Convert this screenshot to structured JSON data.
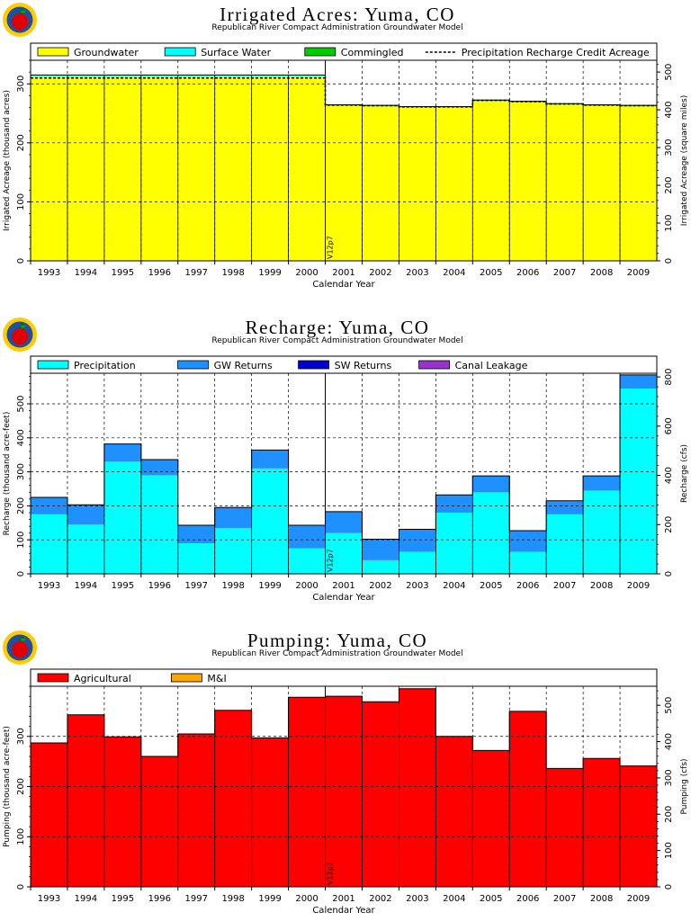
{
  "chart_data": [
    {
      "type": "area",
      "title": "Irrigated Acres: Yuma, CO",
      "subtitle": "Republican River Compact Administration Groundwater Model",
      "xlabel": "Calendar Year",
      "ylabel": "Irrigated Acreage (thousand acres)",
      "y2label": "Irrigated Acreage (square miles)",
      "marker_label": "V12p7",
      "marker_year": 2000.5,
      "categories": [
        "1993",
        "1994",
        "1995",
        "1996",
        "1997",
        "1998",
        "1999",
        "2000",
        "2001",
        "2002",
        "2003",
        "2004",
        "2005",
        "2006",
        "2007",
        "2008",
        "2009"
      ],
      "ylim": [
        0,
        340
      ],
      "yticks": [
        0,
        100,
        200,
        300
      ],
      "y2lim": [
        0,
        531.25
      ],
      "y2ticks": [
        0,
        100,
        200,
        300,
        400,
        500
      ],
      "legend": [
        "Groundwater",
        "Surface Water",
        "Commingled",
        "Precipitation Recharge Credit Acreage"
      ],
      "series": [
        {
          "name": "Groundwater",
          "color": "#ffff00",
          "values": [
            313,
            313,
            313,
            313,
            313,
            313,
            313,
            313,
            263,
            262,
            260,
            260,
            271,
            269,
            265,
            263,
            262
          ]
        },
        {
          "name": "Surface Water",
          "color": "#00ffff",
          "values": [
            2,
            2,
            2,
            2,
            2,
            2,
            2,
            2,
            1.5,
            1.5,
            1.5,
            1.5,
            1.5,
            1.5,
            1.5,
            1.5,
            1.5
          ]
        },
        {
          "name": "Commingled",
          "color": "#00cc00",
          "values": [
            0,
            0,
            0,
            0,
            0,
            0,
            0,
            0,
            0,
            0,
            0,
            0,
            0,
            0,
            0,
            0,
            0
          ]
        }
      ],
      "line": {
        "name": "Precipitation Recharge Credit Acreage",
        "values": [
          310,
          310,
          310,
          310,
          310,
          310,
          310,
          310,
          264,
          263,
          261,
          261,
          272,
          270,
          266,
          264,
          263
        ]
      }
    },
    {
      "type": "area",
      "title": "Recharge: Yuma, CO",
      "subtitle": "Republican River Compact Administration Groundwater Model",
      "xlabel": "Calendar Year",
      "ylabel": "Recharge (thousand acre-feet)",
      "y2label": "Recharge (cfs)",
      "marker_label": "V12p7",
      "marker_year": 2000.5,
      "categories": [
        "1993",
        "1994",
        "1995",
        "1996",
        "1997",
        "1998",
        "1999",
        "2000",
        "2001",
        "2002",
        "2003",
        "2004",
        "2005",
        "2006",
        "2007",
        "2008",
        "2009"
      ],
      "ylim": [
        0,
        590
      ],
      "yticks": [
        0,
        100,
        200,
        300,
        400,
        500
      ],
      "y2lim": [
        0,
        814.9
      ],
      "y2ticks": [
        0,
        200,
        400,
        600,
        800
      ],
      "legend": [
        "Precipitation",
        "GW Returns",
        "SW Returns",
        "Canal Leakage"
      ],
      "series": [
        {
          "name": "Precipitation",
          "color": "#00ffff",
          "values": [
            175,
            145,
            330,
            290,
            90,
            135,
            310,
            75,
            120,
            40,
            65,
            180,
            240,
            65,
            175,
            245,
            545
          ]
        },
        {
          "name": "GW Returns",
          "color": "#1e90ff",
          "values": [
            50,
            58,
            52,
            46,
            53,
            60,
            54,
            68,
            63,
            62,
            66,
            52,
            48,
            62,
            40,
            43,
            40
          ]
        },
        {
          "name": "SW Returns",
          "color": "#0000cc",
          "values": [
            0,
            0,
            0,
            0,
            0,
            0,
            0,
            0,
            0,
            0,
            0,
            0,
            0,
            0,
            0,
            0,
            0
          ]
        },
        {
          "name": "Canal Leakage",
          "color": "#9933cc",
          "values": [
            0,
            0,
            0,
            0,
            0,
            0,
            0,
            0,
            0,
            0,
            0,
            0,
            0,
            0,
            0,
            0,
            0
          ]
        }
      ]
    },
    {
      "type": "area",
      "title": "Pumping: Yuma, CO",
      "subtitle": "Republican River Compact Administration Groundwater Model",
      "xlabel": "Calendar Year",
      "ylabel": "Pumping (thousand acre-feet)",
      "y2label": "Pumping (cfs)",
      "marker_label": "V12p7",
      "marker_year": 2000.5,
      "categories": [
        "1993",
        "1994",
        "1995",
        "1996",
        "1997",
        "1998",
        "1999",
        "2000",
        "2001",
        "2002",
        "2003",
        "2004",
        "2005",
        "2006",
        "2007",
        "2008",
        "2009"
      ],
      "ylim": [
        0,
        400
      ],
      "yticks": [
        0,
        100,
        200,
        300
      ],
      "y2lim": [
        0,
        552.5
      ],
      "y2ticks": [
        0,
        100,
        200,
        300,
        400,
        500
      ],
      "legend": [
        "Agricultural",
        "M&I"
      ],
      "series": [
        {
          "name": "Agricultural",
          "color": "#ff0000",
          "values": [
            287,
            343,
            299,
            260,
            305,
            352,
            297,
            378,
            380,
            369,
            395,
            300,
            272,
            350,
            236,
            256,
            241
          ]
        },
        {
          "name": "M&I",
          "color": "#ffa500",
          "values": [
            0,
            0,
            0,
            0,
            0,
            0,
            0,
            0,
            0,
            0,
            0,
            0,
            0,
            0,
            0,
            0,
            0
          ]
        }
      ]
    }
  ]
}
